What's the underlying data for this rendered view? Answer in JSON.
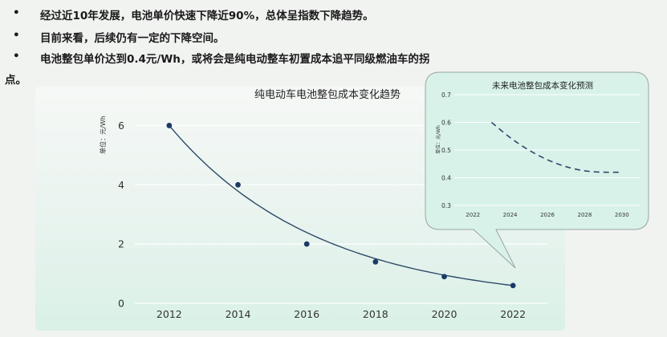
{
  "bullets": [
    "经过近10年发展，电池单价快速下降近90%，总体呈指数下降趋势。",
    "目前来看，后续仍有一定的下降空间。",
    "电池整包单价达到0.4元/Wh，或将会是纯电动整车初置成本追平同级燃油车的拐",
    "点。"
  ],
  "bullet_symbol": "•",
  "colors": {
    "background": "#f1f3f1",
    "main_curve": "#2e4a6a",
    "points": "#1c3a66",
    "inset_curve": "#2e4a6a",
    "inset_fill": "#d8f2ea",
    "grid": "#ffffff"
  },
  "chart_data": [
    {
      "type": "scatter",
      "title": "纯电动车电池整包成本变化趋势",
      "ylabel": "单位：元/Wh",
      "xlabel": "",
      "x": [
        2012,
        2014,
        2016,
        2018,
        2020,
        2022
      ],
      "y": [
        6.0,
        4.0,
        2.0,
        1.4,
        0.9,
        0.6
      ],
      "fit_curve": "exponential",
      "xlim": [
        2011,
        2023
      ],
      "ylim": [
        0,
        6.5
      ],
      "xticks": [
        "2012",
        "2014",
        "2016",
        "2018",
        "2020",
        "2022"
      ],
      "yticks": [
        "0",
        "2",
        "4",
        "6"
      ],
      "grid": true
    },
    {
      "type": "line",
      "title": "未来电池整包成本变化预测",
      "ylabel": "单位：元/Wh",
      "xlabel": "",
      "line_style": "dashed",
      "x": [
        2023,
        2024,
        2025,
        2026,
        2027,
        2028,
        2029,
        2030
      ],
      "y": [
        0.6,
        0.545,
        0.5,
        0.465,
        0.44,
        0.425,
        0.42,
        0.42
      ],
      "xlim": [
        2021,
        2031
      ],
      "ylim": [
        0.3,
        0.7
      ],
      "xticks": [
        "2022",
        "2024",
        "2026",
        "2028",
        "2030"
      ],
      "yticks": [
        "0.3",
        "0.4",
        "0.5",
        "0.6",
        "0.7"
      ],
      "grid": true
    }
  ]
}
